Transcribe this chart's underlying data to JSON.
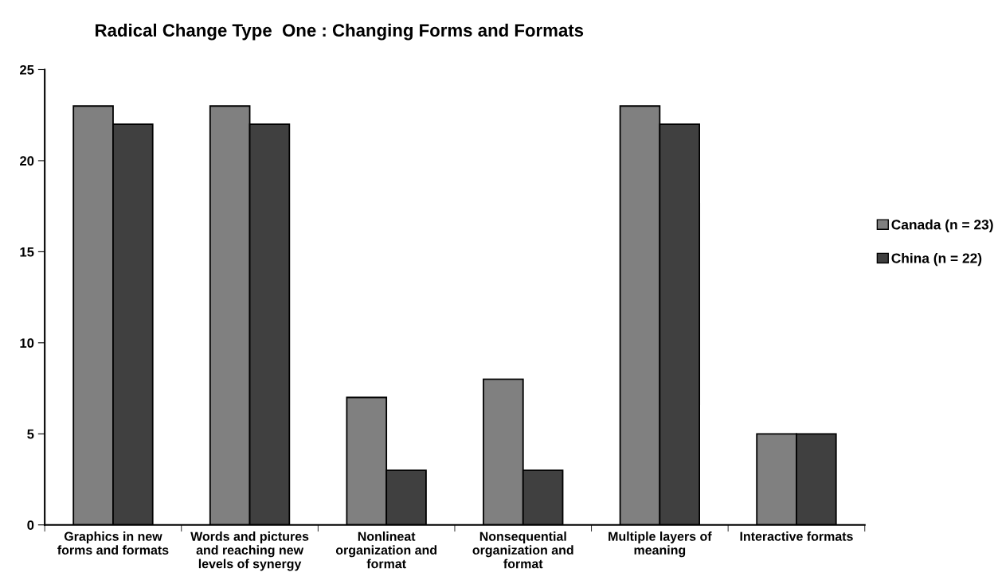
{
  "chart_data": {
    "type": "bar",
    "title": "Radical Change Type  One : Changing Forms and Formats",
    "categories": [
      "Graphics in new\nforms and formats",
      "Words and pictures\nand reaching new\nlevels of synergy",
      "Nonlineat\norganization and\nformat",
      "Nonsequential\norganization and\nformat",
      "Multiple layers of\nmeaning",
      "Interactive formats"
    ],
    "series": [
      {
        "name": "Canada (n = 23)",
        "color": "#808080",
        "values": [
          23,
          23,
          7,
          8,
          23,
          5
        ]
      },
      {
        "name": "China (n = 22)",
        "color": "#404040",
        "values": [
          22,
          22,
          3,
          3,
          22,
          5
        ]
      }
    ],
    "ylim": [
      0,
      25
    ],
    "yticks": [
      0,
      5,
      10,
      15,
      20,
      25
    ],
    "grid": false,
    "legend": "right"
  }
}
